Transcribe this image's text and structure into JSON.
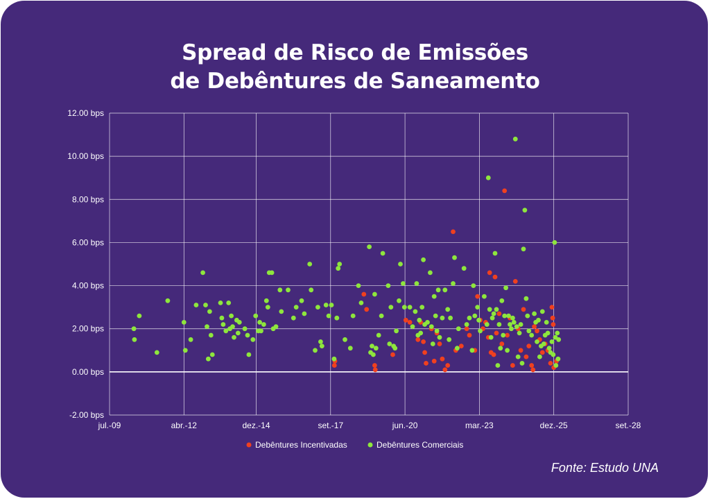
{
  "title": {
    "line1": "Spread de Risco de Emissões",
    "line2": "de Debêntures de Saneamento"
  },
  "source": "Fonte: Estudo UNA",
  "colors": {
    "background": "#45297a",
    "incentivadas": "#f0401f",
    "comerciais": "#8ee63d",
    "grid": "#ffffff"
  },
  "chart_data": {
    "type": "scatter",
    "title": "Spread de Risco de Emissões de Debêntures de Saneamento",
    "xlabel": "",
    "ylabel": "",
    "x_unit": "years since jul.-09",
    "xlim": [
      0,
      19.17
    ],
    "ylim": [
      -2,
      12
    ],
    "yticks": [
      -2,
      0,
      2,
      4,
      6,
      8,
      10,
      12
    ],
    "ytick_labels": [
      "-2.00 bps",
      "0.00 bps",
      "2.00 bps",
      "4.00 bps",
      "6.00 bps",
      "8.00 bps",
      "10.00 bps",
      "12.00 bps"
    ],
    "xticks": [
      0,
      2.75,
      5.42,
      8.17,
      10.92,
      13.67,
      16.42,
      19.17
    ],
    "xtick_labels": [
      "jul.-09",
      "abr.-12",
      "dez.-14",
      "set.-17",
      "jun.-20",
      "mar.-23",
      "dez.-25",
      "set.-28"
    ],
    "grid": true,
    "legend_position": "bottom-center",
    "series": [
      {
        "name": "Debêntures Incentivadas",
        "color": "#f0401f",
        "points": [
          [
            8.31,
            0.3
          ],
          [
            8.33,
            0.5
          ],
          [
            9.4,
            3.6
          ],
          [
            9.5,
            2.9
          ],
          [
            9.8,
            0.3
          ],
          [
            9.82,
            0.1
          ],
          [
            10.47,
            0.8
          ],
          [
            10.95,
            2.4
          ],
          [
            11.1,
            2.3
          ],
          [
            11.4,
            1.5
          ],
          [
            11.5,
            2.3
          ],
          [
            11.6,
            1.4
          ],
          [
            11.65,
            0.9
          ],
          [
            11.7,
            0.4
          ],
          [
            11.9,
            2.0
          ],
          [
            12.0,
            0.5
          ],
          [
            12.1,
            1.8
          ],
          [
            12.2,
            1.3
          ],
          [
            12.3,
            0.6
          ],
          [
            12.4,
            0.1
          ],
          [
            12.5,
            0.3
          ],
          [
            12.7,
            6.5
          ],
          [
            12.8,
            1.0
          ],
          [
            13.0,
            1.2
          ],
          [
            13.2,
            2.0
          ],
          [
            13.3,
            1.7
          ],
          [
            13.5,
            1.0
          ],
          [
            13.6,
            3.5
          ],
          [
            13.7,
            2.4
          ],
          [
            13.8,
            2.0
          ],
          [
            13.9,
            2.3
          ],
          [
            14.0,
            1.6
          ],
          [
            14.05,
            4.6
          ],
          [
            14.1,
            0.9
          ],
          [
            14.2,
            0.8
          ],
          [
            14.25,
            4.4
          ],
          [
            14.3,
            1.8
          ],
          [
            14.4,
            2.7
          ],
          [
            14.5,
            1.3
          ],
          [
            14.6,
            8.4
          ],
          [
            14.7,
            1.7
          ],
          [
            14.8,
            2.5
          ],
          [
            14.9,
            0.3
          ],
          [
            15.0,
            4.2
          ],
          [
            15.1,
            2.0
          ],
          [
            15.2,
            1.0
          ],
          [
            15.3,
            2.9
          ],
          [
            15.4,
            0.7
          ],
          [
            15.5,
            1.2
          ],
          [
            15.6,
            0.3
          ],
          [
            15.65,
            0.1
          ],
          [
            15.7,
            2.1
          ],
          [
            15.8,
            1.9
          ],
          [
            15.9,
            1.5
          ],
          [
            16.0,
            0.9
          ],
          [
            16.1,
            1.3
          ],
          [
            16.2,
            1.0
          ],
          [
            16.3,
            0.4
          ],
          [
            16.35,
            3.0
          ],
          [
            16.38,
            2.5
          ],
          [
            16.4,
            2.2
          ],
          [
            16.42,
            0.2
          ],
          [
            16.5,
            0.3
          ],
          [
            16.52,
            0.5
          ]
        ]
      },
      {
        "name": "Debêntures Comerciais",
        "color": "#8ee63d",
        "points": [
          [
            0.9,
            2.0
          ],
          [
            0.92,
            1.5
          ],
          [
            1.1,
            2.6
          ],
          [
            1.75,
            0.9
          ],
          [
            2.15,
            3.3
          ],
          [
            2.75,
            2.3
          ],
          [
            2.8,
            1.0
          ],
          [
            3.0,
            1.5
          ],
          [
            3.2,
            3.1
          ],
          [
            3.45,
            4.6
          ],
          [
            3.55,
            3.1
          ],
          [
            3.6,
            2.1
          ],
          [
            3.65,
            0.6
          ],
          [
            3.7,
            2.8
          ],
          [
            3.75,
            1.7
          ],
          [
            3.8,
            0.8
          ],
          [
            4.1,
            3.2
          ],
          [
            4.15,
            2.5
          ],
          [
            4.2,
            2.2
          ],
          [
            4.3,
            1.9
          ],
          [
            4.4,
            3.2
          ],
          [
            4.45,
            2.0
          ],
          [
            4.5,
            2.6
          ],
          [
            4.55,
            2.1
          ],
          [
            4.6,
            1.6
          ],
          [
            4.7,
            2.4
          ],
          [
            4.75,
            1.8
          ],
          [
            4.8,
            2.3
          ],
          [
            5.0,
            2.0
          ],
          [
            5.1,
            1.7
          ],
          [
            5.15,
            0.8
          ],
          [
            5.3,
            1.5
          ],
          [
            5.4,
            2.6
          ],
          [
            5.5,
            1.9
          ],
          [
            5.55,
            2.3
          ],
          [
            5.6,
            1.9
          ],
          [
            5.7,
            2.2
          ],
          [
            5.8,
            3.3
          ],
          [
            5.85,
            3.0
          ],
          [
            5.9,
            4.6
          ],
          [
            6.0,
            4.6
          ],
          [
            6.05,
            2.0
          ],
          [
            6.15,
            2.1
          ],
          [
            6.3,
            3.8
          ],
          [
            6.35,
            2.8
          ],
          [
            6.6,
            3.8
          ],
          [
            6.8,
            2.5
          ],
          [
            6.9,
            3.0
          ],
          [
            7.1,
            3.3
          ],
          [
            7.2,
            2.7
          ],
          [
            7.4,
            5.0
          ],
          [
            7.45,
            3.8
          ],
          [
            7.6,
            1.0
          ],
          [
            7.7,
            3.0
          ],
          [
            7.8,
            1.4
          ],
          [
            7.85,
            1.2
          ],
          [
            8.0,
            3.1
          ],
          [
            8.1,
            2.6
          ],
          [
            8.2,
            3.1
          ],
          [
            8.3,
            0.6
          ],
          [
            8.4,
            2.5
          ],
          [
            8.45,
            4.8
          ],
          [
            8.5,
            5.0
          ],
          [
            8.7,
            1.5
          ],
          [
            8.9,
            1.1
          ],
          [
            9.0,
            2.6
          ],
          [
            9.2,
            4.0
          ],
          [
            9.3,
            3.2
          ],
          [
            9.6,
            5.8
          ],
          [
            9.65,
            0.9
          ],
          [
            9.7,
            1.2
          ],
          [
            9.75,
            0.8
          ],
          [
            9.8,
            3.6
          ],
          [
            9.85,
            1.1
          ],
          [
            9.95,
            1.7
          ],
          [
            10.05,
            2.6
          ],
          [
            10.1,
            5.5
          ],
          [
            10.3,
            4.0
          ],
          [
            10.35,
            1.3
          ],
          [
            10.4,
            3.0
          ],
          [
            10.5,
            1.2
          ],
          [
            10.55,
            1.1
          ],
          [
            10.6,
            1.9
          ],
          [
            10.7,
            3.3
          ],
          [
            10.75,
            5.0
          ],
          [
            10.85,
            4.1
          ],
          [
            10.9,
            3.0
          ],
          [
            11.1,
            3.0
          ],
          [
            11.2,
            2.1
          ],
          [
            11.3,
            2.8
          ],
          [
            11.35,
            4.1
          ],
          [
            11.4,
            1.7
          ],
          [
            11.45,
            2.4
          ],
          [
            11.5,
            1.8
          ],
          [
            11.55,
            3.0
          ],
          [
            11.6,
            5.2
          ],
          [
            11.65,
            2.2
          ],
          [
            11.75,
            2.3
          ],
          [
            11.85,
            4.6
          ],
          [
            11.9,
            2.1
          ],
          [
            11.95,
            1.3
          ],
          [
            12.0,
            3.5
          ],
          [
            12.05,
            2.6
          ],
          [
            12.1,
            1.9
          ],
          [
            12.15,
            3.8
          ],
          [
            12.2,
            1.6
          ],
          [
            12.3,
            2.5
          ],
          [
            12.4,
            3.8
          ],
          [
            12.5,
            2.9
          ],
          [
            12.55,
            1.5
          ],
          [
            12.6,
            2.5
          ],
          [
            12.7,
            4.1
          ],
          [
            12.75,
            5.3
          ],
          [
            12.85,
            1.1
          ],
          [
            12.9,
            2.0
          ],
          [
            13.1,
            4.8
          ],
          [
            13.2,
            2.2
          ],
          [
            13.3,
            2.5
          ],
          [
            13.4,
            1.0
          ],
          [
            13.45,
            4.0
          ],
          [
            13.5,
            2.6
          ],
          [
            13.6,
            3.0
          ],
          [
            13.65,
            2.4
          ],
          [
            13.7,
            1.9
          ],
          [
            13.85,
            3.5
          ],
          [
            13.95,
            2.2
          ],
          [
            14.0,
            9.0
          ],
          [
            14.05,
            2.9
          ],
          [
            14.1,
            1.6
          ],
          [
            14.15,
            2.5
          ],
          [
            14.2,
            2.7
          ],
          [
            14.25,
            5.5
          ],
          [
            14.3,
            2.9
          ],
          [
            14.35,
            0.3
          ],
          [
            14.4,
            2.2
          ],
          [
            14.45,
            1.1
          ],
          [
            14.5,
            3.3
          ],
          [
            14.55,
            1.7
          ],
          [
            14.6,
            2.6
          ],
          [
            14.65,
            3.9
          ],
          [
            14.7,
            1.0
          ],
          [
            14.75,
            2.6
          ],
          [
            14.8,
            2.2
          ],
          [
            14.85,
            2.0
          ],
          [
            14.9,
            2.5
          ],
          [
            14.95,
            2.3
          ],
          [
            15.0,
            10.8
          ],
          [
            15.05,
            2.1
          ],
          [
            15.1,
            0.7
          ],
          [
            15.15,
            1.8
          ],
          [
            15.2,
            2.2
          ],
          [
            15.25,
            0.4
          ],
          [
            15.3,
            5.7
          ],
          [
            15.35,
            7.5
          ],
          [
            15.4,
            3.4
          ],
          [
            15.45,
            2.6
          ],
          [
            15.5,
            1.9
          ],
          [
            15.6,
            1.7
          ],
          [
            15.7,
            2.7
          ],
          [
            15.75,
            2.3
          ],
          [
            15.8,
            1.4
          ],
          [
            15.85,
            2.4
          ],
          [
            15.9,
            0.7
          ],
          [
            15.95,
            1.2
          ],
          [
            16.0,
            2.8
          ],
          [
            16.05,
            1.3
          ],
          [
            16.1,
            1.7
          ],
          [
            16.15,
            2.3
          ],
          [
            16.2,
            1.8
          ],
          [
            16.25,
            1.1
          ],
          [
            16.3,
            0.9
          ],
          [
            16.35,
            1.4
          ],
          [
            16.4,
            0.8
          ],
          [
            16.45,
            6.0
          ],
          [
            16.48,
            1.6
          ],
          [
            16.5,
            0.3
          ],
          [
            16.55,
            1.8
          ],
          [
            16.58,
            0.6
          ],
          [
            16.6,
            1.5
          ]
        ]
      }
    ]
  }
}
